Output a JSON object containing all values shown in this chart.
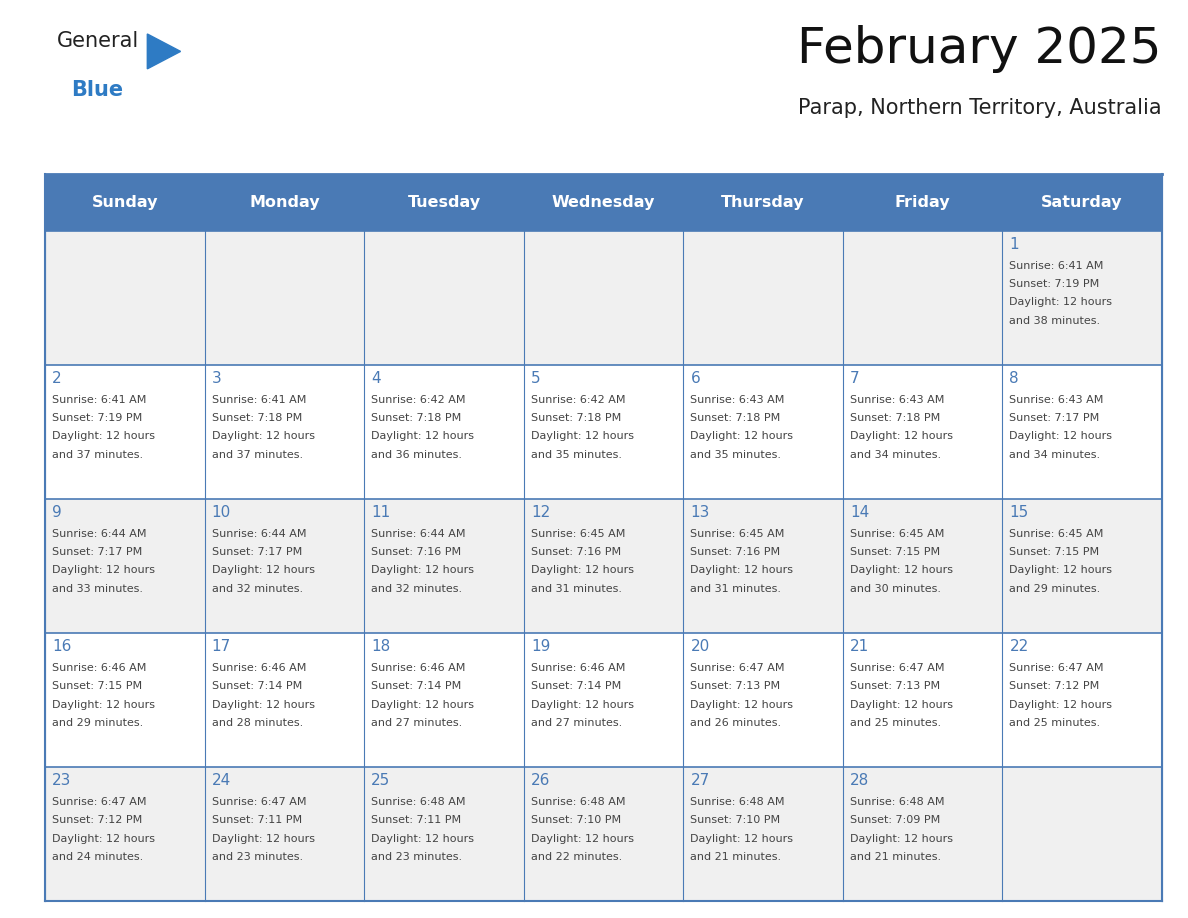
{
  "title": "February 2025",
  "subtitle": "Parap, Northern Territory, Australia",
  "header_color": "#4a7ab5",
  "header_text_color": "#ffffff",
  "day_names": [
    "Sunday",
    "Monday",
    "Tuesday",
    "Wednesday",
    "Thursday",
    "Friday",
    "Saturday"
  ],
  "grid_line_color": "#4a7ab5",
  "row_bg_colors": [
    "#f0f0f0",
    "#ffffff",
    "#f0f0f0",
    "#ffffff",
    "#f0f0f0"
  ],
  "text_color": "#444444",
  "number_color": "#4a7ab5",
  "logo_general_color": "#222222",
  "logo_blue_color": "#2e7bc4",
  "calendar_data": [
    [
      null,
      null,
      null,
      null,
      null,
      null,
      {
        "day": 1,
        "sunrise": "6:41 AM",
        "sunset": "7:19 PM",
        "daylight_hrs": 12,
        "daylight_min": "38 minutes."
      }
    ],
    [
      {
        "day": 2,
        "sunrise": "6:41 AM",
        "sunset": "7:19 PM",
        "daylight_hrs": 12,
        "daylight_min": "37 minutes."
      },
      {
        "day": 3,
        "sunrise": "6:41 AM",
        "sunset": "7:18 PM",
        "daylight_hrs": 12,
        "daylight_min": "37 minutes."
      },
      {
        "day": 4,
        "sunrise": "6:42 AM",
        "sunset": "7:18 PM",
        "daylight_hrs": 12,
        "daylight_min": "36 minutes."
      },
      {
        "day": 5,
        "sunrise": "6:42 AM",
        "sunset": "7:18 PM",
        "daylight_hrs": 12,
        "daylight_min": "35 minutes."
      },
      {
        "day": 6,
        "sunrise": "6:43 AM",
        "sunset": "7:18 PM",
        "daylight_hrs": 12,
        "daylight_min": "35 minutes."
      },
      {
        "day": 7,
        "sunrise": "6:43 AM",
        "sunset": "7:18 PM",
        "daylight_hrs": 12,
        "daylight_min": "34 minutes."
      },
      {
        "day": 8,
        "sunrise": "6:43 AM",
        "sunset": "7:17 PM",
        "daylight_hrs": 12,
        "daylight_min": "34 minutes."
      }
    ],
    [
      {
        "day": 9,
        "sunrise": "6:44 AM",
        "sunset": "7:17 PM",
        "daylight_hrs": 12,
        "daylight_min": "33 minutes."
      },
      {
        "day": 10,
        "sunrise": "6:44 AM",
        "sunset": "7:17 PM",
        "daylight_hrs": 12,
        "daylight_min": "32 minutes."
      },
      {
        "day": 11,
        "sunrise": "6:44 AM",
        "sunset": "7:16 PM",
        "daylight_hrs": 12,
        "daylight_min": "32 minutes."
      },
      {
        "day": 12,
        "sunrise": "6:45 AM",
        "sunset": "7:16 PM",
        "daylight_hrs": 12,
        "daylight_min": "31 minutes."
      },
      {
        "day": 13,
        "sunrise": "6:45 AM",
        "sunset": "7:16 PM",
        "daylight_hrs": 12,
        "daylight_min": "31 minutes."
      },
      {
        "day": 14,
        "sunrise": "6:45 AM",
        "sunset": "7:15 PM",
        "daylight_hrs": 12,
        "daylight_min": "30 minutes."
      },
      {
        "day": 15,
        "sunrise": "6:45 AM",
        "sunset": "7:15 PM",
        "daylight_hrs": 12,
        "daylight_min": "29 minutes."
      }
    ],
    [
      {
        "day": 16,
        "sunrise": "6:46 AM",
        "sunset": "7:15 PM",
        "daylight_hrs": 12,
        "daylight_min": "29 minutes."
      },
      {
        "day": 17,
        "sunrise": "6:46 AM",
        "sunset": "7:14 PM",
        "daylight_hrs": 12,
        "daylight_min": "28 minutes."
      },
      {
        "day": 18,
        "sunrise": "6:46 AM",
        "sunset": "7:14 PM",
        "daylight_hrs": 12,
        "daylight_min": "27 minutes."
      },
      {
        "day": 19,
        "sunrise": "6:46 AM",
        "sunset": "7:14 PM",
        "daylight_hrs": 12,
        "daylight_min": "27 minutes."
      },
      {
        "day": 20,
        "sunrise": "6:47 AM",
        "sunset": "7:13 PM",
        "daylight_hrs": 12,
        "daylight_min": "26 minutes."
      },
      {
        "day": 21,
        "sunrise": "6:47 AM",
        "sunset": "7:13 PM",
        "daylight_hrs": 12,
        "daylight_min": "25 minutes."
      },
      {
        "day": 22,
        "sunrise": "6:47 AM",
        "sunset": "7:12 PM",
        "daylight_hrs": 12,
        "daylight_min": "25 minutes."
      }
    ],
    [
      {
        "day": 23,
        "sunrise": "6:47 AM",
        "sunset": "7:12 PM",
        "daylight_hrs": 12,
        "daylight_min": "24 minutes."
      },
      {
        "day": 24,
        "sunrise": "6:47 AM",
        "sunset": "7:11 PM",
        "daylight_hrs": 12,
        "daylight_min": "23 minutes."
      },
      {
        "day": 25,
        "sunrise": "6:48 AM",
        "sunset": "7:11 PM",
        "daylight_hrs": 12,
        "daylight_min": "23 minutes."
      },
      {
        "day": 26,
        "sunrise": "6:48 AM",
        "sunset": "7:10 PM",
        "daylight_hrs": 12,
        "daylight_min": "22 minutes."
      },
      {
        "day": 27,
        "sunrise": "6:48 AM",
        "sunset": "7:10 PM",
        "daylight_hrs": 12,
        "daylight_min": "21 minutes."
      },
      {
        "day": 28,
        "sunrise": "6:48 AM",
        "sunset": "7:09 PM",
        "daylight_hrs": 12,
        "daylight_min": "21 minutes."
      },
      null
    ]
  ],
  "figsize": [
    11.88,
    9.18
  ],
  "dpi": 100
}
